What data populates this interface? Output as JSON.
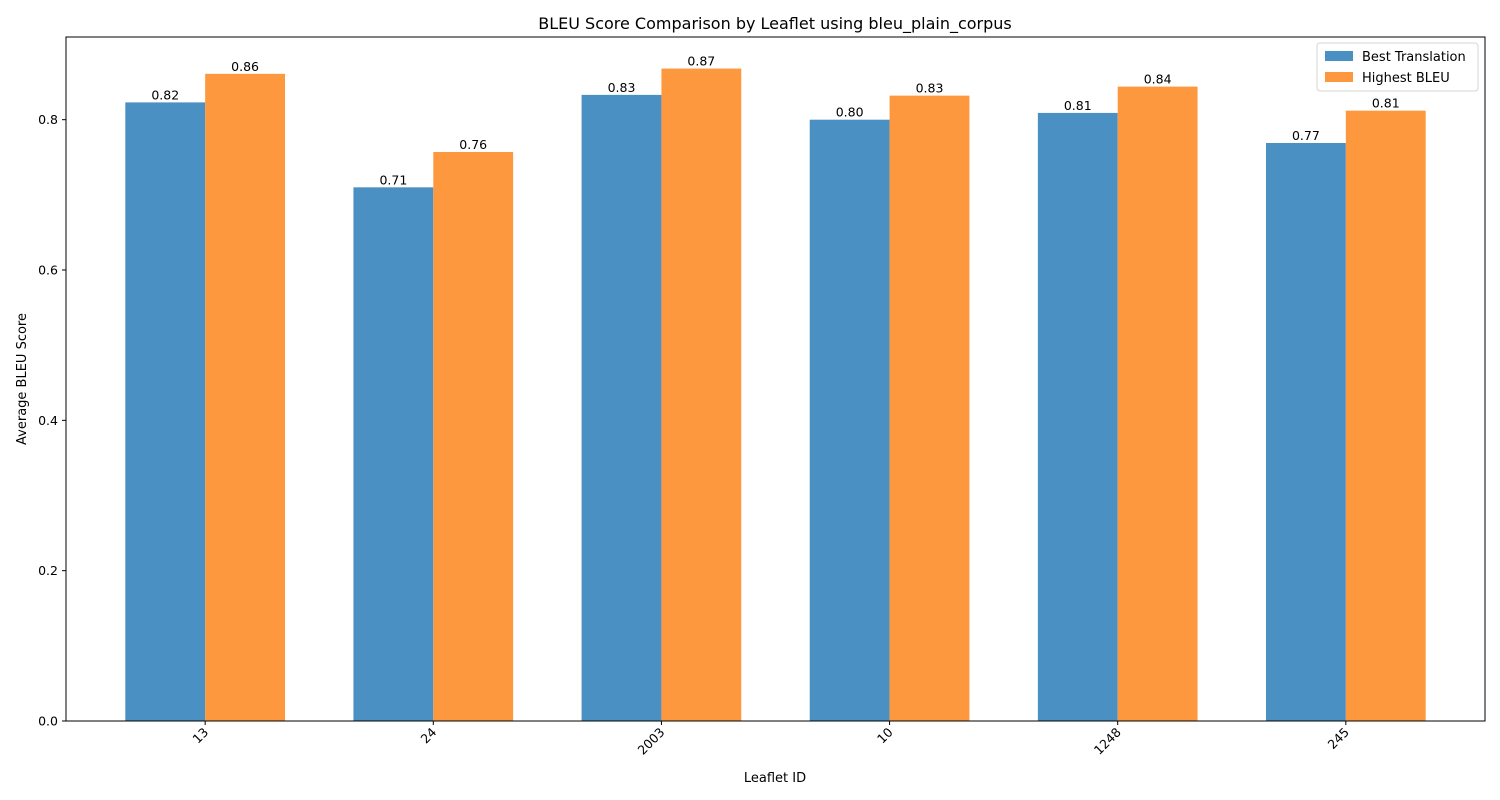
{
  "chart_data": {
    "type": "bar",
    "title": "BLEU Score Comparison by Leaflet using bleu_plain_corpus",
    "xlabel": "Leaflet ID",
    "ylabel": "Average BLEU Score",
    "categories": [
      "13",
      "24",
      "2003",
      "10",
      "1248",
      "245"
    ],
    "series": [
      {
        "name": "Best Translation",
        "color": "#4a90c2",
        "values": [
          0.823,
          0.71,
          0.833,
          0.8,
          0.809,
          0.769
        ],
        "labels": [
          "0.82",
          "0.71",
          "0.83",
          "0.80",
          "0.81",
          "0.77"
        ]
      },
      {
        "name": "Highest BLEU",
        "color": "#fe983f",
        "values": [
          0.861,
          0.757,
          0.868,
          0.832,
          0.844,
          0.812
        ],
        "labels": [
          "0.86",
          "0.76",
          "0.87",
          "0.83",
          "0.84",
          "0.81"
        ]
      }
    ],
    "ylim": [
      0,
      0.91
    ],
    "yticks": [
      "0.0",
      "0.2",
      "0.4",
      "0.6",
      "0.8"
    ],
    "legend_position": "top-right",
    "grid": false
  }
}
